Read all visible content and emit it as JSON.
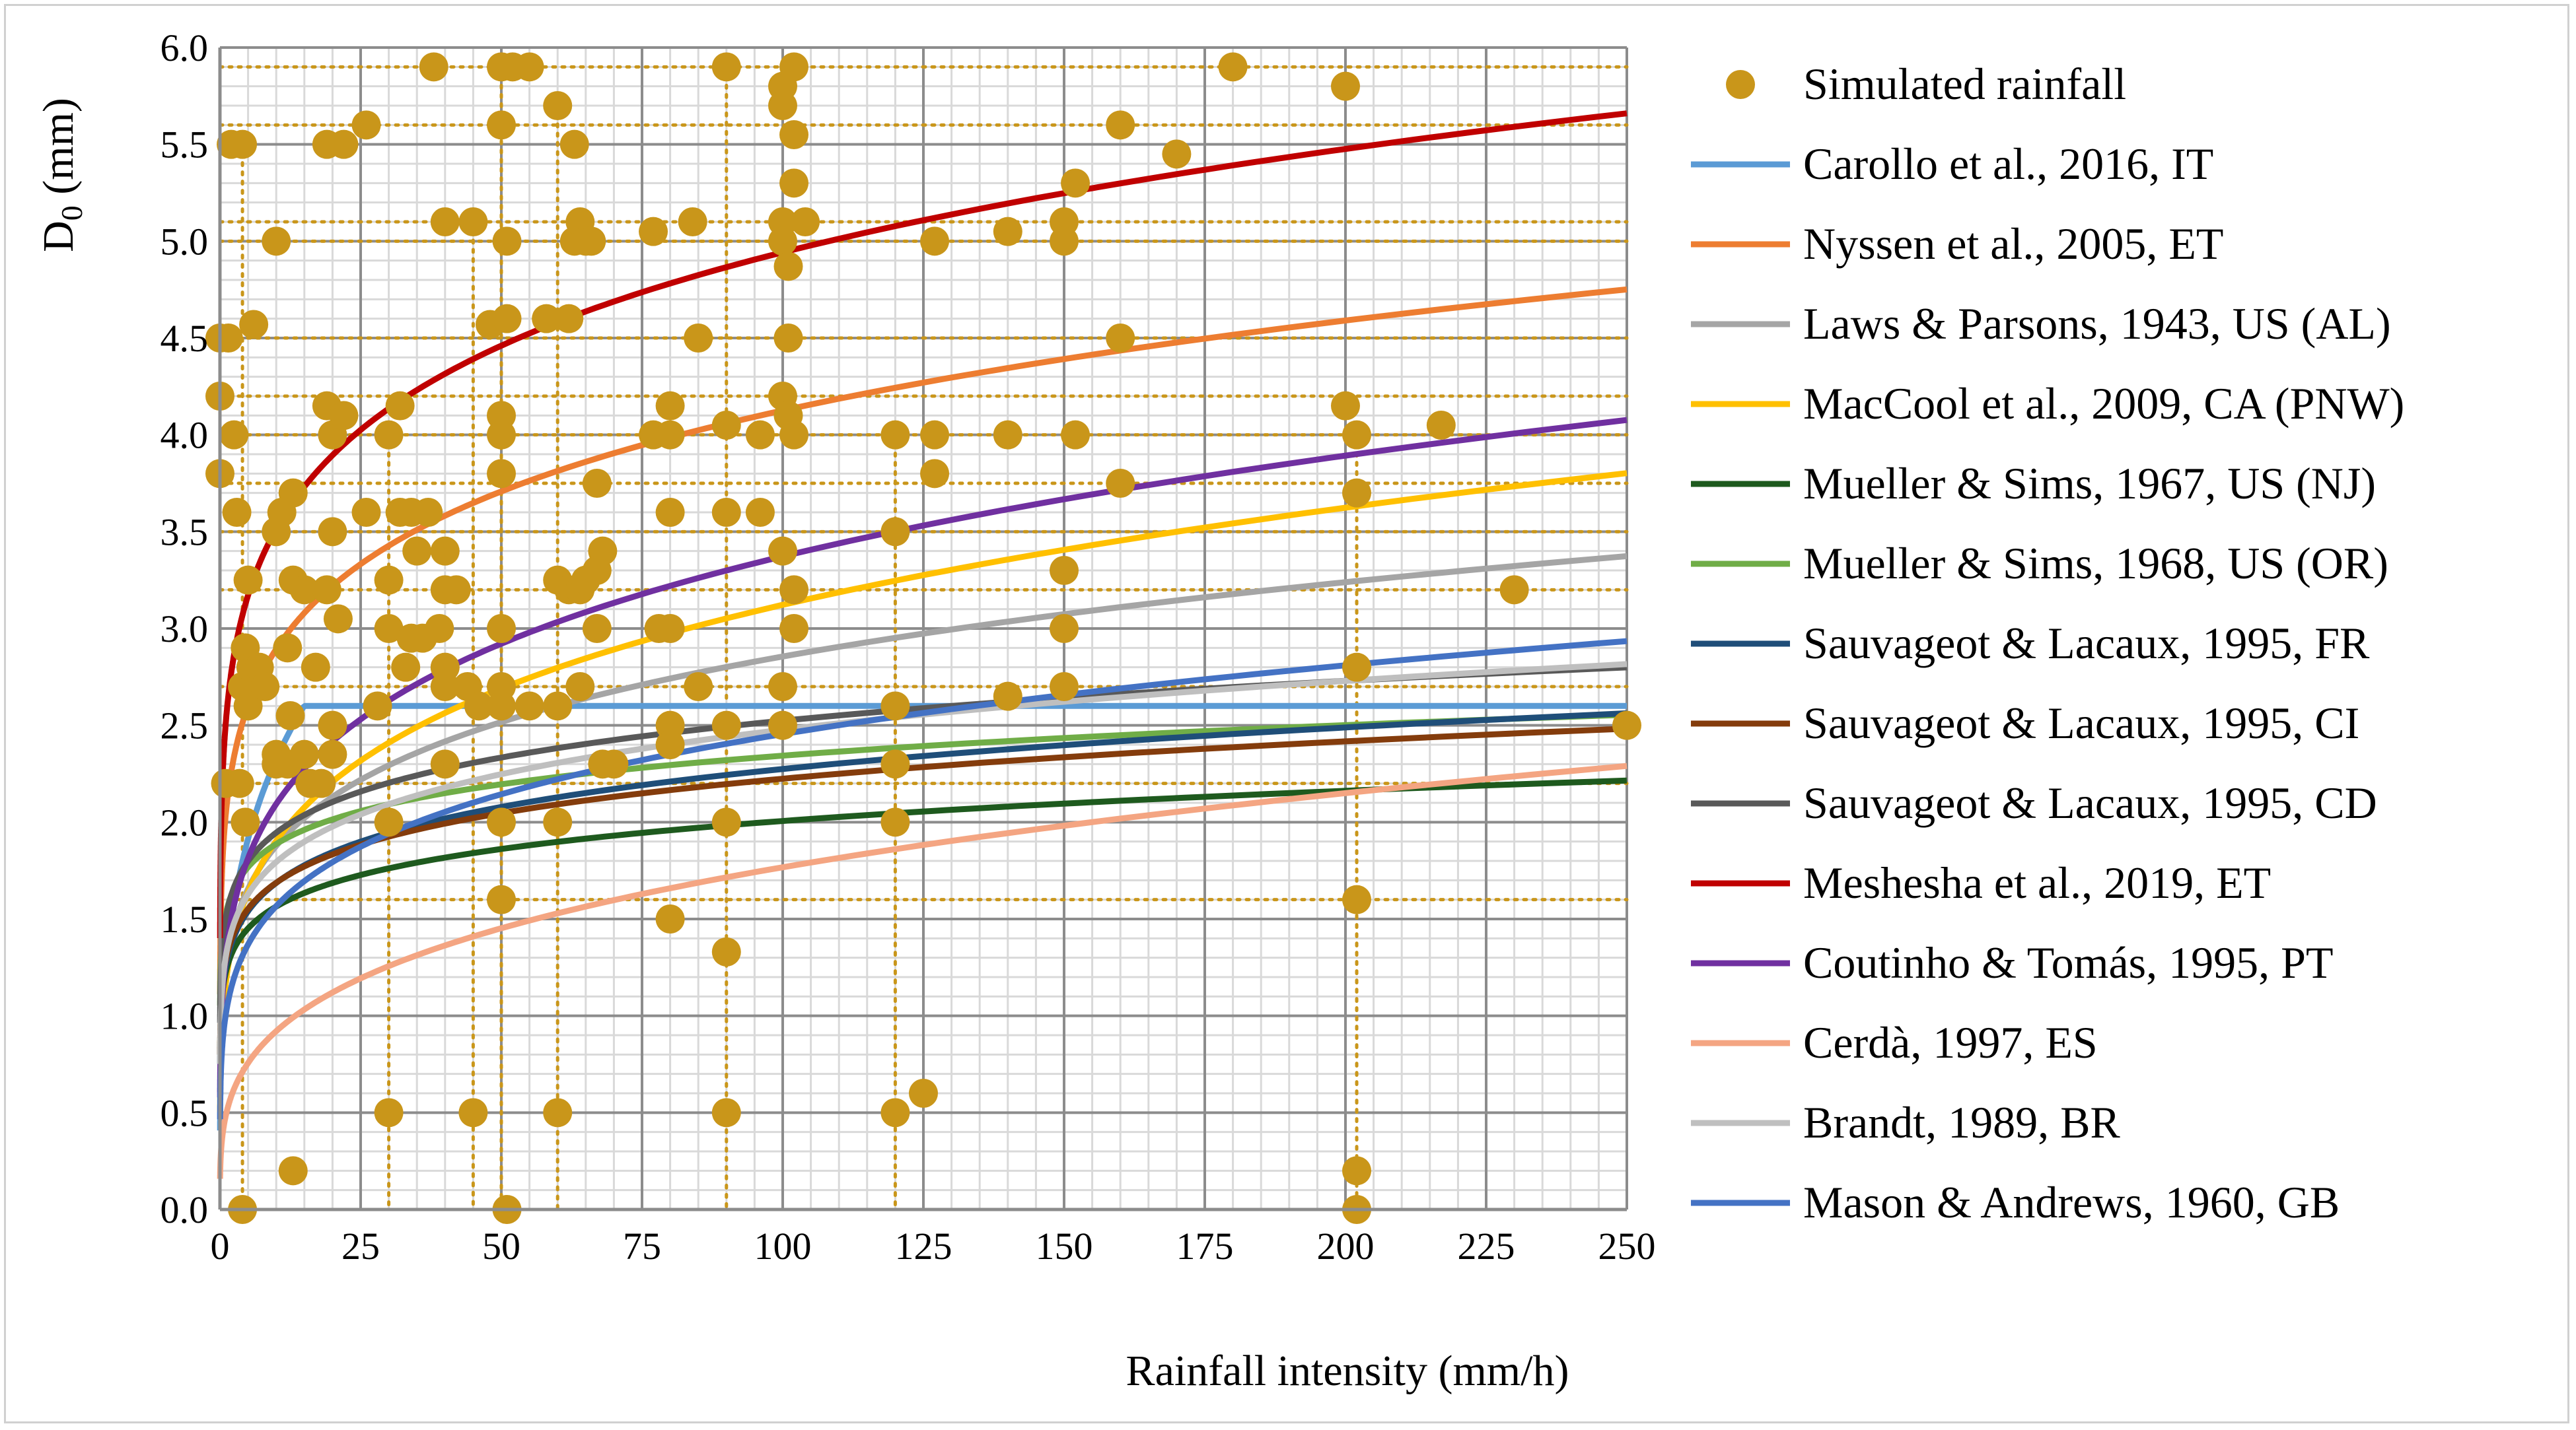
{
  "chart_data": {
    "type": "line",
    "title": "",
    "xlabel": "Rainfall intensity (mm/h)",
    "ylabel_main": "D",
    "ylabel_sub": "0",
    "ylabel_unit": " (mm)",
    "xlim": [
      0,
      250
    ],
    "ylim": [
      0,
      6
    ],
    "x_ticks": [
      "0",
      "25",
      "50",
      "75",
      "100",
      "125",
      "150",
      "175",
      "200",
      "225",
      "250"
    ],
    "y_ticks": [
      "0.0",
      "0.5",
      "1.0",
      "1.5",
      "2.0",
      "2.5",
      "3.0",
      "3.5",
      "4.0",
      "4.5",
      "5.0",
      "5.5",
      "6.0"
    ],
    "grid": true,
    "legend_position": "right",
    "scatter": {
      "name": "Simulated rainfall",
      "color": "#C9961A",
      "points": [
        [
          0,
          4.5
        ],
        [
          0,
          4.2
        ],
        [
          0,
          3.8
        ],
        [
          1,
          2.2
        ],
        [
          1.5,
          4.5
        ],
        [
          2,
          5.5
        ],
        [
          2.5,
          4.0
        ],
        [
          3,
          3.6
        ],
        [
          3.5,
          2.2
        ],
        [
          4,
          5.5
        ],
        [
          4,
          0
        ],
        [
          4.5,
          2.0
        ],
        [
          4,
          2.7
        ],
        [
          4.5,
          2.9
        ],
        [
          5,
          3.25
        ],
        [
          5,
          2.6
        ],
        [
          5.5,
          2.8
        ],
        [
          6,
          4.57
        ],
        [
          7,
          2.8
        ],
        [
          8,
          2.7
        ],
        [
          10,
          5.0
        ],
        [
          10,
          3.5
        ],
        [
          10,
          2.35
        ],
        [
          10,
          2.3
        ],
        [
          11,
          3.6
        ],
        [
          12,
          2.3
        ],
        [
          12,
          2.9
        ],
        [
          12.5,
          2.55
        ],
        [
          13,
          3.7
        ],
        [
          13,
          3.25
        ],
        [
          13,
          0.2
        ],
        [
          15,
          3.2
        ],
        [
          15,
          2.35
        ],
        [
          16,
          2.2
        ],
        [
          17,
          2.8
        ],
        [
          18,
          2.2
        ],
        [
          19,
          5.5
        ],
        [
          19,
          4.15
        ],
        [
          19,
          3.2
        ],
        [
          20,
          4.0
        ],
        [
          20,
          2.35
        ],
        [
          20,
          2.5
        ],
        [
          20,
          3.5
        ],
        [
          21,
          3.05
        ],
        [
          22,
          5.5
        ],
        [
          22,
          4.1
        ],
        [
          26,
          5.6
        ],
        [
          26,
          3.6
        ],
        [
          28,
          2.6
        ],
        [
          30,
          4.0
        ],
        [
          30,
          3.25
        ],
        [
          30,
          3.0
        ],
        [
          30,
          2.0
        ],
        [
          30,
          0.5
        ],
        [
          32,
          3.6
        ],
        [
          32,
          4.15
        ],
        [
          33,
          2.8
        ],
        [
          34,
          3.6
        ],
        [
          34,
          2.95
        ],
        [
          35,
          3.4
        ],
        [
          36,
          2.95
        ],
        [
          37,
          3.6
        ],
        [
          38,
          5.9
        ],
        [
          39,
          3.0
        ],
        [
          40,
          5.1
        ],
        [
          40,
          3.4
        ],
        [
          40,
          3.2
        ],
        [
          40,
          2.8
        ],
        [
          40,
          2.7
        ],
        [
          40,
          2.3
        ],
        [
          42,
          3.2
        ],
        [
          44,
          2.7
        ],
        [
          45,
          5.1
        ],
        [
          45,
          0.5
        ],
        [
          46,
          2.6
        ],
        [
          48,
          4.57
        ],
        [
          50,
          5.9
        ],
        [
          50,
          5.6
        ],
        [
          50,
          4.1
        ],
        [
          50,
          4.0
        ],
        [
          50,
          3.8
        ],
        [
          50,
          3.0
        ],
        [
          50,
          2.7
        ],
        [
          50,
          2.6
        ],
        [
          50,
          2.0
        ],
        [
          50,
          1.6
        ],
        [
          51,
          0
        ],
        [
          51,
          4.6
        ],
        [
          51,
          5.0
        ],
        [
          52,
          5.9
        ],
        [
          55,
          5.9
        ],
        [
          55,
          2.6
        ],
        [
          58,
          4.6
        ],
        [
          60,
          5.7
        ],
        [
          60,
          3.25
        ],
        [
          60,
          2.6
        ],
        [
          60,
          2.0
        ],
        [
          60,
          0.5
        ],
        [
          62,
          4.6
        ],
        [
          62,
          3.2
        ],
        [
          63,
          5.5
        ],
        [
          63,
          5.0
        ],
        [
          64,
          5.1
        ],
        [
          64,
          3.2
        ],
        [
          64,
          2.7
        ],
        [
          65,
          3.25
        ],
        [
          65,
          5.0
        ],
        [
          66,
          5.0
        ],
        [
          67,
          3.75
        ],
        [
          67,
          3.0
        ],
        [
          67,
          3.3
        ],
        [
          68,
          3.4
        ],
        [
          68,
          2.3
        ],
        [
          70,
          2.3
        ],
        [
          77,
          5.05
        ],
        [
          77,
          4.0
        ],
        [
          78,
          3.0
        ],
        [
          80,
          4.15
        ],
        [
          80,
          4.0
        ],
        [
          80,
          3.6
        ],
        [
          80,
          3.0
        ],
        [
          80,
          2.5
        ],
        [
          80,
          2.4
        ],
        [
          80,
          1.5
        ],
        [
          84,
          5.1
        ],
        [
          85,
          4.5
        ],
        [
          85,
          2.7
        ],
        [
          90,
          5.9
        ],
        [
          90,
          4.05
        ],
        [
          90,
          3.6
        ],
        [
          90,
          2.5
        ],
        [
          90,
          2.0
        ],
        [
          90,
          1.33
        ],
        [
          90,
          0.5
        ],
        [
          96,
          4.0
        ],
        [
          96,
          3.6
        ],
        [
          100,
          5.8
        ],
        [
          100,
          5.7
        ],
        [
          100,
          5.1
        ],
        [
          100,
          5.0
        ],
        [
          100,
          4.2
        ],
        [
          100,
          3.4
        ],
        [
          100,
          2.7
        ],
        [
          100,
          2.5
        ],
        [
          101,
          4.87
        ],
        [
          101,
          4.5
        ],
        [
          101,
          4.1
        ],
        [
          102,
          5.9
        ],
        [
          102,
          5.55
        ],
        [
          102,
          5.3
        ],
        [
          102,
          4.0
        ],
        [
          102,
          3.2
        ],
        [
          102,
          3.0
        ],
        [
          104,
          5.1
        ],
        [
          120,
          4.0
        ],
        [
          120,
          3.5
        ],
        [
          120,
          2.6
        ],
        [
          120,
          2.3
        ],
        [
          120,
          2.0
        ],
        [
          120,
          0.5
        ],
        [
          125,
          0.6
        ],
        [
          127,
          5.0
        ],
        [
          127,
          4.0
        ],
        [
          127,
          3.8
        ],
        [
          140,
          5.05
        ],
        [
          140,
          4.0
        ],
        [
          140,
          2.65
        ],
        [
          150,
          5.1
        ],
        [
          150,
          5.0
        ],
        [
          150,
          3.3
        ],
        [
          150,
          3.0
        ],
        [
          150,
          2.7
        ],
        [
          152,
          5.3
        ],
        [
          152,
          4.0
        ],
        [
          160,
          5.6
        ],
        [
          160,
          4.5
        ],
        [
          160,
          3.75
        ],
        [
          170,
          5.45
        ],
        [
          180,
          5.9
        ],
        [
          200,
          5.8
        ],
        [
          200,
          4.15
        ],
        [
          202,
          4.0
        ],
        [
          202,
          3.7
        ],
        [
          202,
          2.8
        ],
        [
          202,
          1.6
        ],
        [
          202,
          0.2
        ],
        [
          202,
          0
        ],
        [
          217,
          4.05
        ],
        [
          230,
          3.2
        ],
        [
          250,
          2.5
        ]
      ],
      "drop_lines_x": [
        4,
        30,
        45,
        50,
        60,
        90,
        120,
        202
      ],
      "drop_lines_y": [
        5.6,
        5.1,
        5.0,
        4.5,
        4.2,
        4.0,
        3.75,
        3.5,
        3.2,
        2.7,
        2.2,
        1.6,
        5.9
      ]
    },
    "series": [
      {
        "name": "Carollo et al., 2016, IT",
        "color": "#5B9BD5",
        "a": 1.22,
        "b": 0.28,
        "cap": 2.6
      },
      {
        "name": "Nyssen et al., 2005, ET",
        "color": "#ED7D31",
        "a": 2.03,
        "b": 0.154
      },
      {
        "name": "Laws & Parsons, 1943, US (AL)",
        "color": "#A5A5A5",
        "a": 1.235,
        "b": 0.182
      },
      {
        "name": "MacCool et al., 2009, CA (PNW)",
        "color": "#FFC000",
        "a": 1.16,
        "b": 0.215
      },
      {
        "name": "Mueller & Sims, 1967, US (NJ)",
        "color": "#1E5A1E",
        "a": 1.22,
        "b": 0.108
      },
      {
        "name": "Mueller & Sims, 1968, US (OR)",
        "color": "#70AD47",
        "a": 1.52,
        "b": 0.094
      },
      {
        "name": "Sauvageot & Lacaux, 1995, FR",
        "color": "#1F4E79",
        "a": 1.25,
        "b": 0.13
      },
      {
        "name": "Sauvageot & Lacaux, 1995, CI",
        "color": "#843C0C",
        "a": 1.28,
        "b": 0.12
      },
      {
        "name": "Sauvageot & Lacaux, 1995, CD",
        "color": "#595959",
        "a": 1.5,
        "b": 0.113
      },
      {
        "name": "Meshesha et al., 2019, ET",
        "color": "#C00000",
        "a": 2.5,
        "b": 0.148
      },
      {
        "name": "Coutinho & Tomás, 1995, PT",
        "color": "#7030A0",
        "a": 1.3,
        "b": 0.207
      },
      {
        "name": "Cerdà, 1997, ES",
        "color": "#F4A582",
        "a": 0.48,
        "b": 0.283
      },
      {
        "name": "Brandt, 1989, BR",
        "color": "#BFBFBF",
        "a": 1.3,
        "b": 0.14
      },
      {
        "name": "Mason & Andrews, 1960, GB",
        "color": "#4472C4",
        "a": 1.0,
        "b": 0.195
      }
    ]
  }
}
